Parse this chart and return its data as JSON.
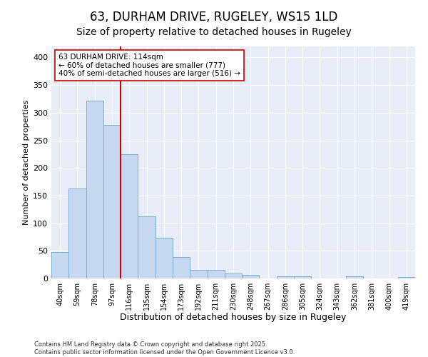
{
  "title": "63, DURHAM DRIVE, RUGELEY, WS15 1LD",
  "subtitle": "Size of property relative to detached houses in Rugeley",
  "xlabel": "Distribution of detached houses by size in Rugeley",
  "ylabel": "Number of detached properties",
  "footer_line1": "Contains HM Land Registry data © Crown copyright and database right 2025.",
  "footer_line2": "Contains public sector information licensed under the Open Government Licence v3.0.",
  "bin_labels": [
    "40sqm",
    "59sqm",
    "78sqm",
    "97sqm",
    "116sqm",
    "135sqm",
    "154sqm",
    "173sqm",
    "192sqm",
    "211sqm",
    "230sqm",
    "248sqm",
    "267sqm",
    "286sqm",
    "305sqm",
    "324sqm",
    "343sqm",
    "362sqm",
    "381sqm",
    "400sqm",
    "419sqm"
  ],
  "bar_values": [
    48,
    163,
    322,
    278,
    225,
    112,
    74,
    39,
    16,
    16,
    9,
    6,
    0,
    4,
    4,
    0,
    0,
    4,
    0,
    0,
    3
  ],
  "bar_color": "#c5d8f0",
  "bar_edge_color": "#7bafd4",
  "vline_index": 4,
  "vline_color": "#cc0000",
  "annotation_text": "63 DURHAM DRIVE: 114sqm\n← 60% of detached houses are smaller (777)\n40% of semi-detached houses are larger (516) →",
  "annotation_box_facecolor": "#ffffff",
  "annotation_box_edgecolor": "#cc0000",
  "annotation_fontsize": 7.5,
  "ylim": [
    0,
    420
  ],
  "yticks": [
    0,
    50,
    100,
    150,
    200,
    250,
    300,
    350,
    400
  ],
  "bg_color": "#e8edf8",
  "grid_color": "#ffffff",
  "fig_bg_color": "#ffffff",
  "title_fontsize": 12,
  "subtitle_fontsize": 10,
  "tick_fontsize": 7,
  "xlabel_fontsize": 9,
  "ylabel_fontsize": 8,
  "footer_fontsize": 6
}
